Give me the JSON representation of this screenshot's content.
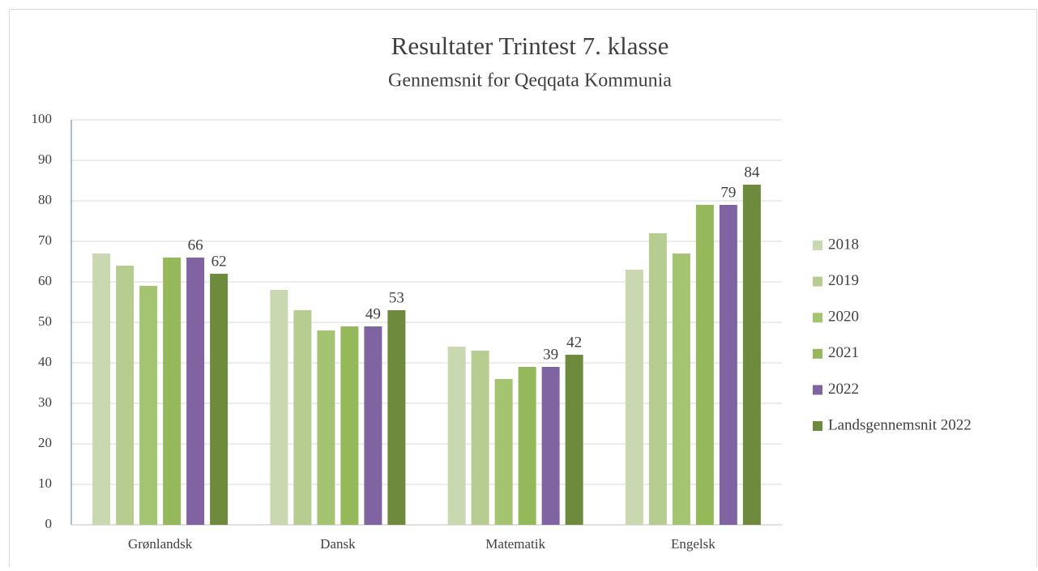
{
  "chart_data": {
    "type": "bar",
    "title": "Resultater Trintest 7. klasse",
    "subtitle": "Gennemsnit for Qeqqata Kommunia",
    "categories": [
      "Grønlandsk",
      "Dansk",
      "Matematik",
      "Engelsk"
    ],
    "series": [
      {
        "name": "2018",
        "color": "#c9d8b0",
        "values": [
          67,
          58,
          44,
          63
        ],
        "data_labels": false
      },
      {
        "name": "2019",
        "color": "#b6cc91",
        "values": [
          64,
          53,
          43,
          72
        ],
        "data_labels": false
      },
      {
        "name": "2020",
        "color": "#a4c472",
        "values": [
          59,
          48,
          36,
          67
        ],
        "data_labels": false
      },
      {
        "name": "2021",
        "color": "#95b95a",
        "values": [
          66,
          49,
          39,
          79
        ],
        "data_labels": false
      },
      {
        "name": "2022",
        "color": "#8064a2",
        "values": [
          66,
          49,
          39,
          79
        ],
        "data_labels": true
      },
      {
        "name": "Landsgennemsnit 2022",
        "color": "#6e8a3c",
        "values": [
          62,
          53,
          42,
          84
        ],
        "data_labels": true
      }
    ],
    "ylim": [
      0,
      100
    ],
    "yticks": [
      0,
      10,
      20,
      30,
      40,
      50,
      60,
      70,
      80,
      90,
      100
    ],
    "grid": true,
    "legend": "right"
  }
}
